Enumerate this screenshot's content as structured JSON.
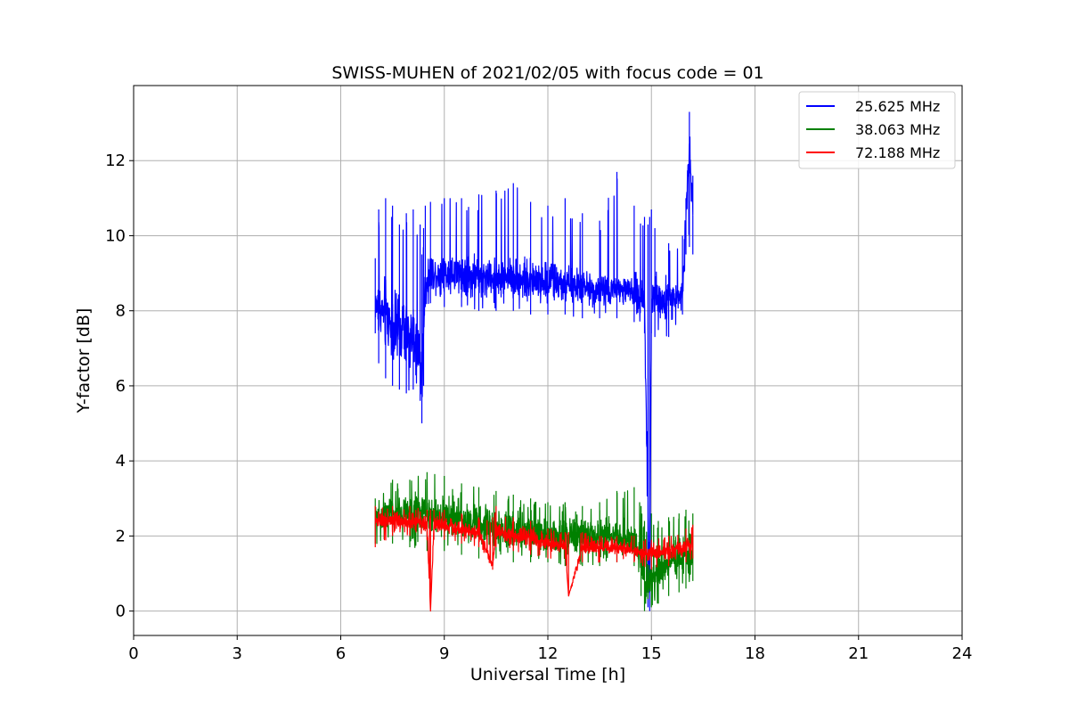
{
  "chart_data": {
    "type": "line",
    "title": "SWISS-MUHEN of 2021/02/05 with focus code = 01",
    "xlabel": "Universal Time [h]",
    "ylabel": "Y-factor [dB]",
    "xlim": [
      0,
      24
    ],
    "ylim": [
      -0.65,
      14
    ],
    "xticks": [
      0,
      3,
      6,
      9,
      12,
      15,
      18,
      21,
      24
    ],
    "yticks": [
      0,
      2,
      4,
      6,
      8,
      10,
      12
    ],
    "grid": true,
    "legend_position": "top-right",
    "series": [
      {
        "name": "25.625 MHz",
        "color": "#0000ff",
        "x": [
          7.0,
          7.1,
          7.3,
          7.5,
          7.7,
          7.9,
          8.1,
          8.3,
          8.35,
          8.4,
          8.45,
          8.6,
          9.0,
          9.5,
          10.0,
          10.5,
          11.0,
          11.5,
          12.0,
          12.5,
          13.0,
          13.5,
          14.0,
          14.5,
          14.8,
          14.9,
          14.95,
          15.0,
          15.1,
          15.5,
          15.9,
          16.0,
          16.1,
          16.2
        ],
        "y": [
          8.2,
          8.0,
          7.9,
          7.6,
          7.4,
          7.3,
          7.2,
          7.0,
          5.8,
          7.5,
          8.8,
          9.0,
          9.0,
          9.0,
          8.9,
          8.9,
          8.9,
          8.8,
          8.8,
          8.7,
          8.6,
          8.6,
          8.6,
          8.5,
          8.2,
          3.0,
          0.3,
          8.3,
          8.4,
          8.3,
          8.5,
          10.5,
          12.5,
          10.5
        ],
        "y_envelope_min": [
          7.4,
          6.6,
          6.2,
          6.0,
          5.9,
          5.8,
          5.9,
          5.6,
          5.0,
          6.0,
          8.1,
          8.2,
          8.1,
          8.1,
          8.0,
          8.0,
          8.0,
          7.9,
          7.9,
          7.9,
          7.8,
          7.8,
          7.8,
          7.7,
          7.4,
          0.1,
          0.0,
          7.4,
          7.3,
          7.3,
          7.9,
          9.5,
          9.7,
          9.5
        ],
        "y_envelope_max": [
          9.4,
          10.7,
          11.0,
          10.8,
          10.3,
          10.6,
          10.7,
          10.3,
          9.5,
          10.2,
          10.8,
          10.9,
          11.0,
          11.0,
          11.1,
          11.2,
          11.4,
          10.9,
          10.8,
          11.0,
          10.6,
          10.4,
          11.7,
          10.8,
          10.5,
          10.3,
          10.5,
          10.7,
          10.2,
          9.8,
          10.0,
          11.0,
          13.3,
          11.6
        ]
      },
      {
        "name": "38.063 MHz",
        "color": "#008000",
        "x": [
          7.0,
          7.5,
          8.0,
          8.5,
          9.0,
          9.5,
          10.0,
          10.5,
          11.0,
          11.5,
          12.0,
          12.5,
          13.0,
          13.5,
          14.0,
          14.5,
          14.7,
          14.8,
          15.0,
          15.2,
          15.5,
          15.8,
          16.0,
          16.2
        ],
        "y": [
          2.5,
          2.6,
          2.6,
          2.6,
          2.5,
          2.4,
          2.3,
          2.2,
          2.2,
          2.1,
          2.0,
          2.0,
          2.0,
          2.0,
          2.0,
          1.9,
          1.4,
          0.9,
          0.9,
          1.1,
          1.3,
          1.4,
          1.5,
          1.6
        ],
        "y_envelope_min": [
          1.8,
          1.8,
          1.7,
          1.6,
          1.6,
          1.5,
          1.4,
          1.4,
          1.3,
          1.3,
          1.3,
          1.2,
          1.2,
          1.2,
          1.3,
          1.2,
          0.4,
          0.0,
          0.1,
          0.2,
          0.4,
          0.5,
          0.6,
          0.8
        ],
        "y_envelope_max": [
          3.0,
          3.5,
          3.5,
          3.7,
          3.6,
          3.4,
          3.3,
          3.2,
          3.1,
          3.0,
          2.9,
          2.9,
          2.8,
          2.9,
          3.2,
          3.3,
          2.8,
          2.4,
          2.6,
          2.4,
          2.5,
          2.6,
          2.7,
          2.6
        ]
      },
      {
        "name": "72.188 MHz",
        "color": "#ff0000",
        "x": [
          7.0,
          7.5,
          8.0,
          8.5,
          8.6,
          8.7,
          9.0,
          9.5,
          10.0,
          10.4,
          10.5,
          11.0,
          11.5,
          12.0,
          12.5,
          12.6,
          13.0,
          13.5,
          14.0,
          14.5,
          15.0,
          15.5,
          16.0,
          16.2
        ],
        "y": [
          2.4,
          2.4,
          2.4,
          2.3,
          0.0,
          2.3,
          2.3,
          2.2,
          2.1,
          1.2,
          2.1,
          2.0,
          2.0,
          1.8,
          1.7,
          0.4,
          1.7,
          1.7,
          1.7,
          1.6,
          1.5,
          1.6,
          1.7,
          1.8
        ],
        "y_envelope_min": [
          1.7,
          2.0,
          2.0,
          1.9,
          0.0,
          1.9,
          1.9,
          1.8,
          1.7,
          1.1,
          1.7,
          1.6,
          1.5,
          1.4,
          1.4,
          0.4,
          1.3,
          1.3,
          1.3,
          1.3,
          1.1,
          1.2,
          1.3,
          1.4
        ],
        "y_envelope_max": [
          2.8,
          2.8,
          2.8,
          2.7,
          2.7,
          2.7,
          2.7,
          2.6,
          2.5,
          2.5,
          2.8,
          2.5,
          2.4,
          2.2,
          2.1,
          2.1,
          2.1,
          2.0,
          2.0,
          2.0,
          1.9,
          2.0,
          2.2,
          2.3
        ]
      }
    ]
  }
}
